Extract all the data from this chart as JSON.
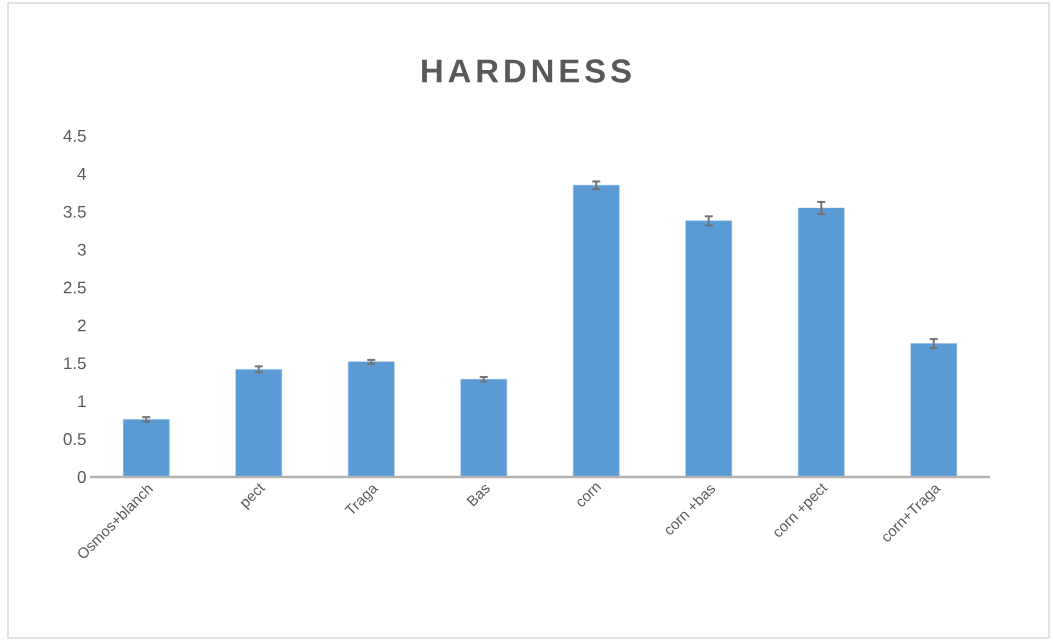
{
  "chart_data": {
    "type": "bar",
    "title": "HARDNESS",
    "categories": [
      "Osmos+blanch",
      "pect",
      "Traga",
      "Bas",
      "corn",
      "corn +bas",
      "corn +pect",
      "corn+Traga"
    ],
    "values": [
      0.76,
      1.42,
      1.52,
      1.29,
      3.85,
      3.38,
      3.55,
      1.76
    ],
    "errors": [
      0.03,
      0.04,
      0.025,
      0.03,
      0.05,
      0.06,
      0.08,
      0.06
    ],
    "color": "#5b9bd5",
    "ylim": [
      0,
      4.5
    ],
    "yticks": [
      0,
      0.5,
      1,
      1.5,
      2,
      2.5,
      3,
      3.5,
      4,
      4.5
    ]
  }
}
